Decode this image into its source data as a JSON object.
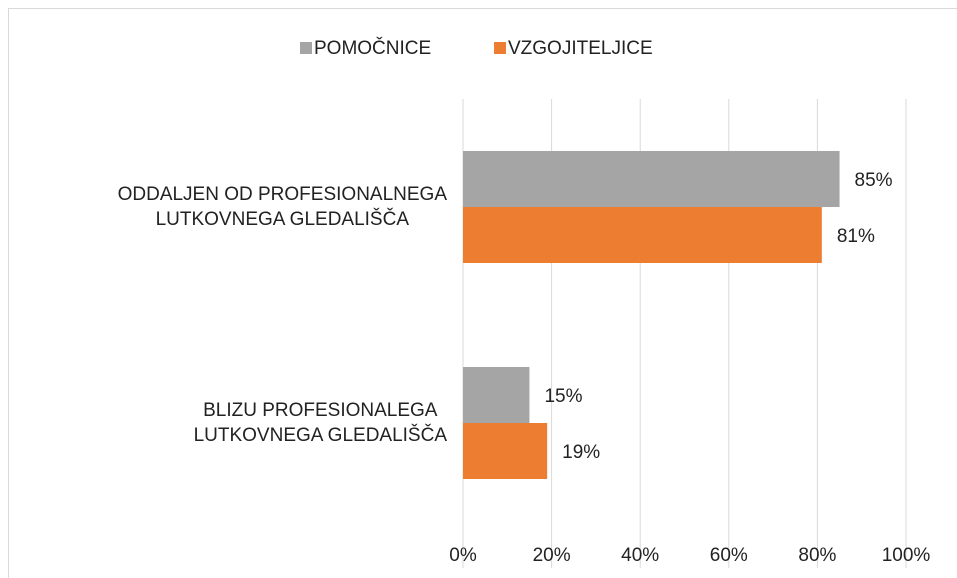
{
  "chart_data": {
    "type": "hbar",
    "categories": [
      "ODDALJEN OD PROFESIONALNEGA\nLUTKOVNEGA GLEDALIŠČA",
      "BLIZU PROFESIONALEGA\nLUTKOVNEGA GLEDALIŠČA"
    ],
    "series": [
      {
        "name": "POMOČNICE",
        "color": "#a5a5a5",
        "values": [
          85,
          15
        ],
        "value_labels": [
          "85%",
          "15%"
        ]
      },
      {
        "name": "VZGOJITELJICE",
        "color": "#ed7d31",
        "values": [
          81,
          19
        ],
        "value_labels": [
          "81%",
          "19%"
        ]
      }
    ],
    "xlim": [
      0,
      100
    ],
    "xticks": [
      {
        "value": 0,
        "label": "0%"
      },
      {
        "value": 20,
        "label": "20%"
      },
      {
        "value": 40,
        "label": "40%"
      },
      {
        "value": 60,
        "label": "60%"
      },
      {
        "value": 80,
        "label": "80%"
      },
      {
        "value": 100,
        "label": "100%"
      }
    ],
    "grid": true,
    "legend": "top"
  }
}
